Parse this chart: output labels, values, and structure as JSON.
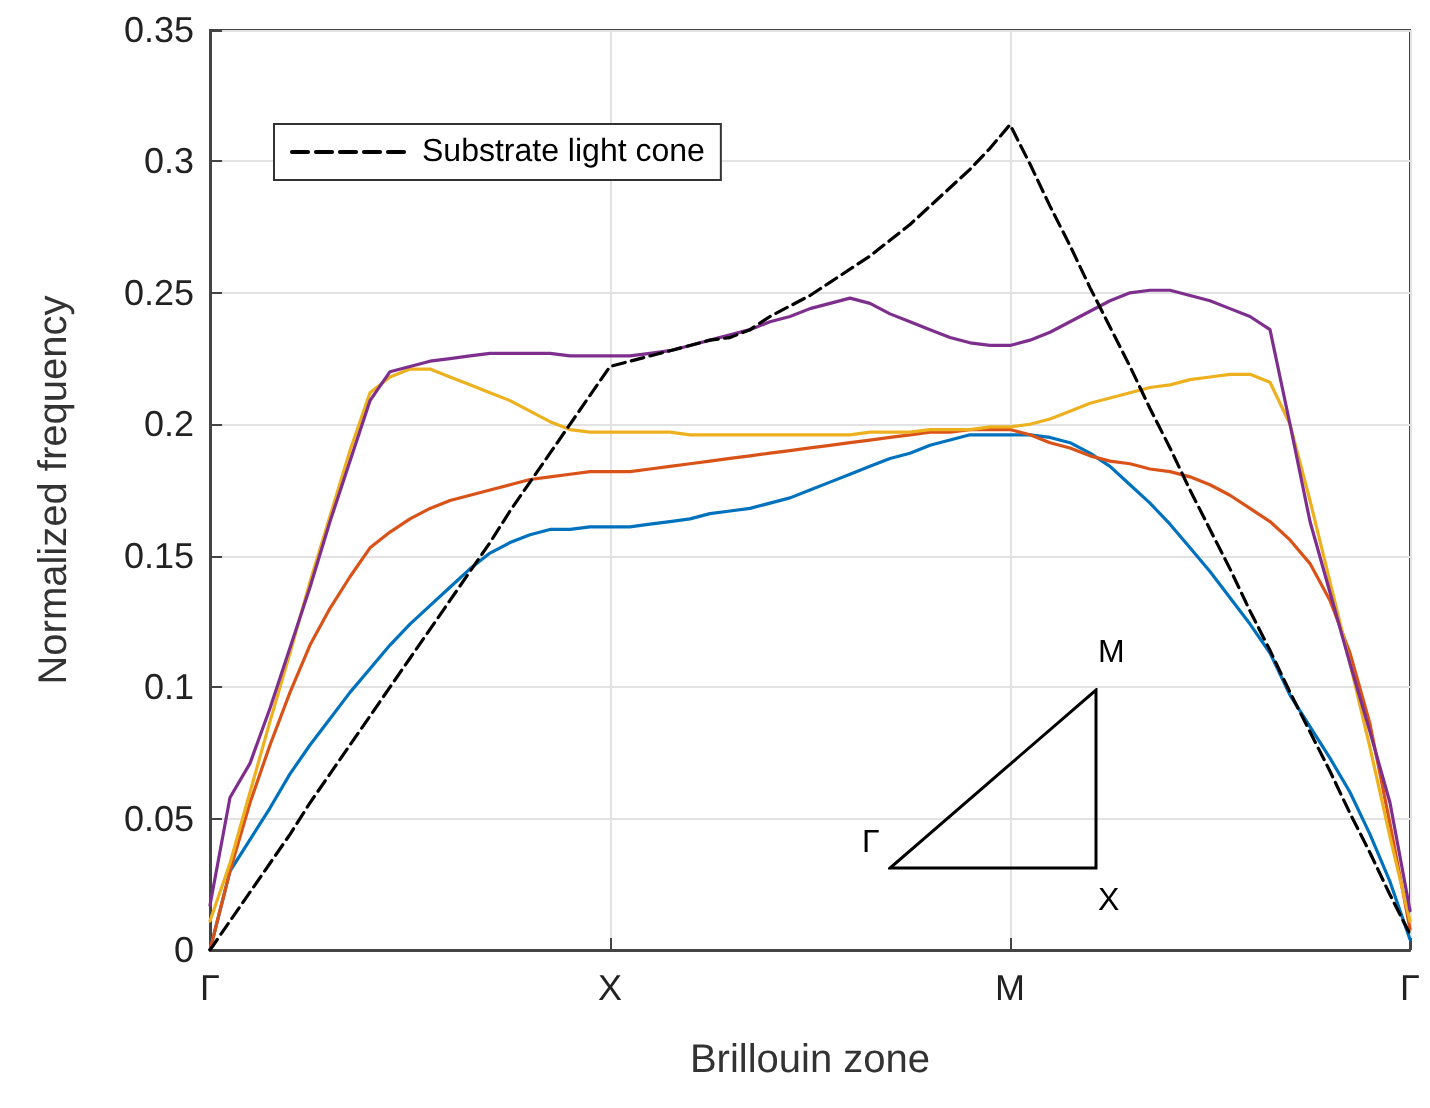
{
  "chart_data": {
    "type": "line",
    "xlabel": "Brillouin zone",
    "ylabel": "Normalized frequency",
    "categories": [
      "Γ",
      null,
      null,
      null,
      null,
      null,
      null,
      null,
      null,
      null,
      null,
      null,
      null,
      null,
      null,
      null,
      null,
      null,
      null,
      null,
      "X",
      null,
      null,
      null,
      null,
      null,
      null,
      null,
      null,
      null,
      null,
      null,
      null,
      null,
      null,
      null,
      null,
      null,
      null,
      null,
      "M",
      null,
      null,
      null,
      null,
      null,
      null,
      null,
      null,
      null,
      null,
      null,
      null,
      null,
      null,
      null,
      null,
      null,
      null,
      null,
      "Γ"
    ],
    "ylim": [
      0,
      0.35
    ],
    "yticks": [
      0,
      0.05,
      0.1,
      0.15,
      0.2,
      0.25,
      0.3,
      0.35
    ],
    "grid": true,
    "legend": "top left",
    "marker": "none",
    "annotations": [
      "Γ",
      "X",
      "M"
    ],
    "series": [
      {
        "name": "Substrate light cone",
        "color": "#000000",
        "line_style": "dashed",
        "values": [
          0,
          0.011,
          0.022,
          0.033,
          0.044,
          0.056,
          0.067,
          0.078,
          0.089,
          0.1,
          0.111,
          0.122,
          0.133,
          0.144,
          0.155,
          0.167,
          0.178,
          0.189,
          0.2,
          0.211,
          0.222,
          0.224,
          0.226,
          0.228,
          0.23,
          0.232,
          0.233,
          0.236,
          0.241,
          0.245,
          0.249,
          0.254,
          0.259,
          0.264,
          0.27,
          0.276,
          0.283,
          0.29,
          0.297,
          0.305,
          0.314,
          0.299,
          0.283,
          0.268,
          0.252,
          0.237,
          0.222,
          0.206,
          0.191,
          0.175,
          0.16,
          0.145,
          0.129,
          0.114,
          0.098,
          0.083,
          0.068,
          0.052,
          0.037,
          0.021,
          0.006
        ]
      },
      {
        "color": "#0072bd",
        "line_style": "solid",
        "values": [
          0,
          0.03,
          0.042,
          0.054,
          0.067,
          0.078,
          0.088,
          0.098,
          0.107,
          0.116,
          0.124,
          0.131,
          0.138,
          0.145,
          0.151,
          0.155,
          0.158,
          0.16,
          0.16,
          0.161,
          0.161,
          0.161,
          0.162,
          0.163,
          0.164,
          0.166,
          0.167,
          0.168,
          0.17,
          0.172,
          0.175,
          0.178,
          0.181,
          0.184,
          0.187,
          0.189,
          0.192,
          0.194,
          0.196,
          0.196,
          0.196,
          0.196,
          0.195,
          0.193,
          0.189,
          0.184,
          0.177,
          0.17,
          0.162,
          0.153,
          0.144,
          0.134,
          0.124,
          0.113,
          0.097,
          0.085,
          0.073,
          0.06,
          0.044,
          0.026,
          0.004
        ]
      },
      {
        "color": "#d95319",
        "line_style": "solid",
        "values": [
          0,
          0.03,
          0.056,
          0.078,
          0.098,
          0.116,
          0.13,
          0.142,
          0.153,
          0.159,
          0.164,
          0.168,
          0.171,
          0.173,
          0.175,
          0.177,
          0.179,
          0.18,
          0.181,
          0.182,
          0.182,
          0.182,
          0.183,
          0.184,
          0.185,
          0.186,
          0.187,
          0.188,
          0.189,
          0.19,
          0.191,
          0.192,
          0.193,
          0.194,
          0.195,
          0.196,
          0.197,
          0.197,
          0.198,
          0.198,
          0.198,
          0.196,
          0.193,
          0.191,
          0.188,
          0.186,
          0.185,
          0.183,
          0.182,
          0.18,
          0.177,
          0.173,
          0.168,
          0.163,
          0.156,
          0.147,
          0.133,
          0.113,
          0.086,
          0.048,
          0.008
        ]
      },
      {
        "color": "#edb120",
        "line_style": "solid",
        "values": [
          0.011,
          0.033,
          0.06,
          0.087,
          0.113,
          0.14,
          0.165,
          0.19,
          0.212,
          0.218,
          0.221,
          0.221,
          0.218,
          0.215,
          0.212,
          0.209,
          0.205,
          0.201,
          0.198,
          0.197,
          0.197,
          0.197,
          0.197,
          0.197,
          0.196,
          0.196,
          0.196,
          0.196,
          0.196,
          0.196,
          0.196,
          0.196,
          0.196,
          0.197,
          0.197,
          0.197,
          0.198,
          0.198,
          0.198,
          0.199,
          0.199,
          0.2,
          0.202,
          0.205,
          0.208,
          0.21,
          0.212,
          0.214,
          0.215,
          0.217,
          0.218,
          0.219,
          0.219,
          0.216,
          0.2,
          0.171,
          0.14,
          0.109,
          0.077,
          0.043,
          0.011
        ]
      },
      {
        "color": "#7e2f8e",
        "line_style": "solid",
        "values": [
          0.017,
          0.058,
          0.071,
          0.092,
          0.115,
          0.138,
          0.163,
          0.186,
          0.209,
          0.22,
          0.222,
          0.224,
          0.225,
          0.226,
          0.227,
          0.227,
          0.227,
          0.227,
          0.226,
          0.226,
          0.226,
          0.226,
          0.227,
          0.228,
          0.23,
          0.232,
          0.234,
          0.236,
          0.239,
          0.241,
          0.244,
          0.246,
          0.248,
          0.246,
          0.242,
          0.239,
          0.236,
          0.233,
          0.231,
          0.23,
          0.23,
          0.232,
          0.235,
          0.239,
          0.243,
          0.247,
          0.25,
          0.251,
          0.251,
          0.249,
          0.247,
          0.244,
          0.241,
          0.236,
          0.2,
          0.163,
          0.136,
          0.109,
          0.083,
          0.056,
          0.015
        ]
      }
    ]
  }
}
